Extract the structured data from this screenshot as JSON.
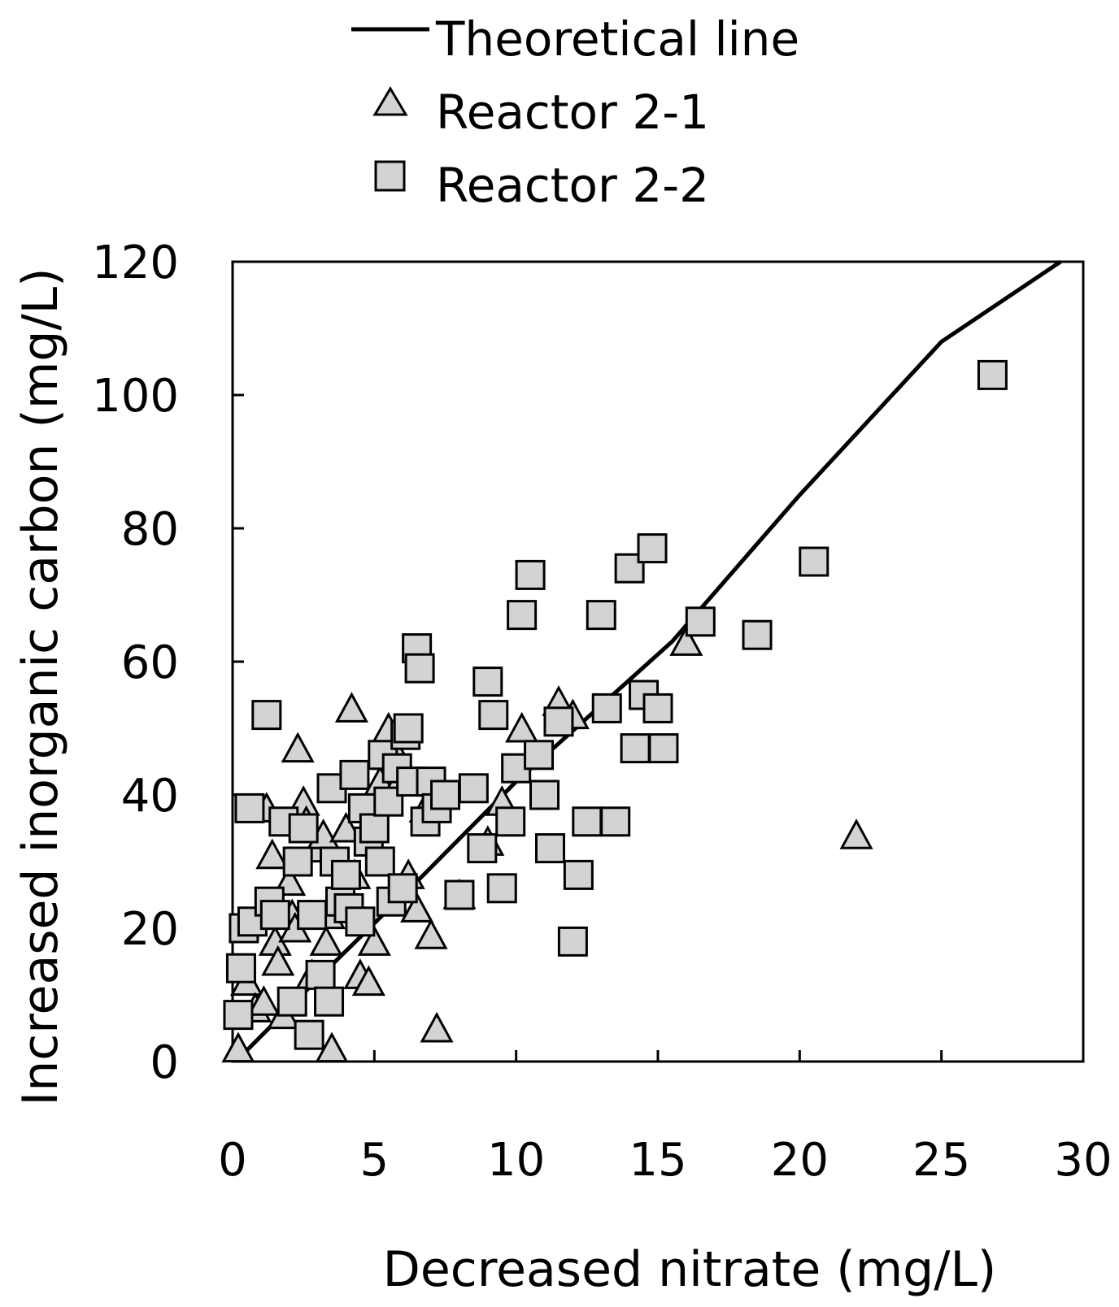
{
  "chart_data": {
    "type": "scatter",
    "title": "",
    "xlabel": "Decreased nitrate (mg/L)",
    "ylabel": "Increased inorganic carbon (mg/L)",
    "xlim": [
      0,
      30
    ],
    "ylim": [
      0,
      120
    ],
    "x_ticks": [
      "0",
      "5",
      "10",
      "15",
      "20",
      "25",
      "30"
    ],
    "y_ticks": [
      "0",
      "20",
      "40",
      "60",
      "80",
      "100",
      "120"
    ],
    "legend_position": "top-center",
    "theoretical_line": {
      "name": "Theoretical line",
      "color": "#000000",
      "points": [
        [
          0.3,
          0.8
        ],
        [
          3.5,
          14.5
        ],
        [
          6.5,
          27
        ],
        [
          10,
          42
        ],
        [
          15.5,
          63
        ],
        [
          20,
          85
        ],
        [
          25,
          108
        ],
        [
          29.2,
          120
        ]
      ]
    },
    "series": [
      {
        "name": "Reactor 2-1",
        "marker": "triangle",
        "fill": "#d3d3d3",
        "x": [
          0.2,
          0.5,
          0.8,
          1.1,
          1.2,
          1.4,
          1.5,
          1.6,
          1.8,
          2.0,
          2.1,
          2.2,
          2.3,
          2.5,
          2.6,
          2.8,
          3.0,
          3.2,
          3.3,
          3.4,
          3.5,
          4.0,
          4.2,
          4.3,
          4.5,
          4.8,
          5.0,
          5.2,
          5.5,
          5.8,
          6.0,
          6.2,
          6.5,
          6.8,
          7.0,
          7.2,
          8.0,
          9.0,
          9.5,
          10.2,
          11.5,
          12.0,
          16.0,
          22.0
        ],
        "y": [
          2,
          12,
          8,
          9,
          38,
          31,
          18,
          15,
          7,
          27,
          22,
          20,
          47,
          39,
          36,
          13,
          32,
          34,
          18,
          22,
          2,
          35,
          53,
          28,
          13,
          12,
          18,
          42,
          50,
          46,
          43,
          28,
          23,
          38,
          19,
          5,
          25,
          33,
          39,
          50,
          54,
          52,
          63,
          34
        ]
      },
      {
        "name": "Reactor 2-2",
        "marker": "square",
        "fill": "#d3d3d3",
        "x": [
          0.2,
          0.3,
          0.4,
          0.6,
          0.7,
          1.2,
          1.3,
          1.5,
          1.8,
          2.1,
          2.3,
          2.5,
          2.7,
          2.8,
          3.1,
          3.4,
          3.5,
          3.6,
          3.8,
          4.0,
          4.1,
          4.3,
          4.5,
          4.6,
          4.8,
          5.0,
          5.2,
          5.3,
          5.5,
          5.6,
          5.8,
          6.0,
          6.1,
          6.2,
          6.3,
          6.5,
          6.6,
          6.8,
          7.0,
          7.2,
          7.5,
          8.0,
          8.5,
          8.8,
          9.0,
          9.2,
          9.5,
          9.8,
          10.0,
          10.2,
          10.5,
          10.8,
          11.0,
          11.2,
          11.5,
          12.0,
          12.2,
          12.5,
          13.0,
          13.2,
          13.5,
          14.0,
          14.2,
          14.5,
          14.8,
          15.0,
          15.2,
          16.5,
          18.5,
          20.5,
          26.8
        ],
        "y": [
          7,
          14,
          20,
          38,
          21,
          52,
          24,
          22,
          36,
          9,
          30,
          35,
          4,
          22,
          13,
          9,
          41,
          30,
          24,
          28,
          23,
          43,
          21,
          38,
          33,
          35,
          30,
          46,
          39,
          24,
          44,
          26,
          49,
          50,
          42,
          62,
          59,
          36,
          42,
          38,
          40,
          25,
          41,
          32,
          57,
          52,
          26,
          36,
          44,
          67,
          73,
          46,
          40,
          32,
          51,
          18,
          28,
          36,
          67,
          53,
          36,
          74,
          47,
          55,
          77,
          53,
          47,
          66,
          64,
          75,
          103
        ]
      }
    ]
  }
}
